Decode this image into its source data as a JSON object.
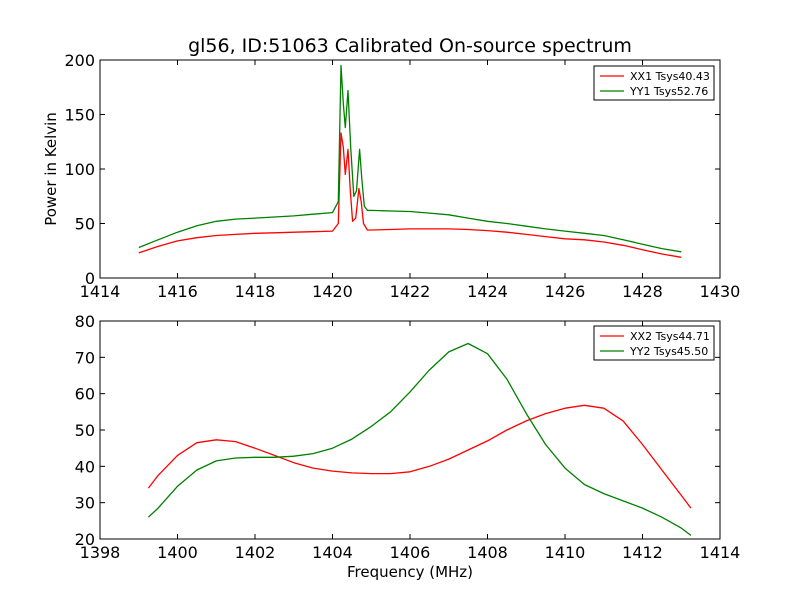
{
  "chart_data": [
    {
      "type": "line",
      "title": "gl56, ID:51063 Calibrated On-source spectrum",
      "xlabel": "",
      "ylabel": "Power in Kelvin",
      "xlim": [
        1414,
        1430
      ],
      "ylim": [
        0,
        200
      ],
      "xticks": [
        "1414",
        "1416",
        "1418",
        "1420",
        "1422",
        "1424",
        "1426",
        "1428",
        "1430"
      ],
      "yticks": [
        "0",
        "50",
        "100",
        "150",
        "200"
      ],
      "legend_position": "top-right",
      "grid": false,
      "series": [
        {
          "name": "XX1 Tsys40.43",
          "color": "#ff0000",
          "x": [
            1415.0,
            1415.5,
            1416.0,
            1416.5,
            1417.0,
            1417.5,
            1418.0,
            1418.5,
            1419.0,
            1419.5,
            1420.0,
            1420.15,
            1420.22,
            1420.28,
            1420.33,
            1420.4,
            1420.46,
            1420.52,
            1420.6,
            1420.68,
            1420.74,
            1420.8,
            1420.9,
            1421.0,
            1421.5,
            1422.0,
            1422.5,
            1423.0,
            1423.5,
            1424.0,
            1424.5,
            1425.0,
            1425.5,
            1426.0,
            1426.5,
            1427.0,
            1427.5,
            1428.0,
            1428.5,
            1429.0
          ],
          "y": [
            23,
            29,
            34,
            37,
            39,
            40,
            41,
            41.5,
            42,
            42.5,
            43,
            50,
            133,
            120,
            95,
            118,
            80,
            52,
            55,
            82,
            70,
            50,
            44,
            44,
            44.5,
            45,
            45,
            45,
            44.5,
            43.5,
            42,
            40,
            38,
            36,
            35,
            33,
            30,
            26,
            22,
            19
          ]
        },
        {
          "name": "YY1 Tsys52.76",
          "color": "#008000",
          "x": [
            1415.0,
            1415.5,
            1416.0,
            1416.5,
            1417.0,
            1417.5,
            1418.0,
            1418.5,
            1419.0,
            1419.5,
            1420.0,
            1420.15,
            1420.22,
            1420.28,
            1420.33,
            1420.4,
            1420.47,
            1420.55,
            1420.62,
            1420.7,
            1420.76,
            1420.82,
            1420.9,
            1421.0,
            1421.5,
            1422.0,
            1422.5,
            1423.0,
            1423.5,
            1424.0,
            1424.5,
            1425.0,
            1425.5,
            1426.0,
            1426.5,
            1427.0,
            1427.5,
            1428.0,
            1428.5,
            1429.0
          ],
          "y": [
            28,
            35,
            42,
            48,
            52,
            54,
            55,
            56,
            57,
            58.5,
            60,
            70,
            195,
            160,
            138,
            172,
            120,
            75,
            80,
            118,
            90,
            66,
            62,
            62,
            61.5,
            61,
            59.5,
            58,
            55,
            52,
            50,
            47.5,
            45,
            43,
            41,
            39,
            35,
            31,
            27,
            24
          ]
        }
      ]
    },
    {
      "type": "line",
      "title": "",
      "xlabel": "Frequency (MHz)",
      "ylabel": "",
      "xlim": [
        1398,
        1414
      ],
      "ylim": [
        20,
        80
      ],
      "xticks": [
        "1398",
        "1400",
        "1402",
        "1404",
        "1406",
        "1408",
        "1410",
        "1412",
        "1414"
      ],
      "yticks": [
        "20",
        "30",
        "40",
        "50",
        "60",
        "70",
        "80"
      ],
      "legend_position": "top-right",
      "grid": false,
      "series": [
        {
          "name": "XX2 Tsys44.71",
          "color": "#ff0000",
          "x": [
            1399.25,
            1399.5,
            1400.0,
            1400.5,
            1401.0,
            1401.5,
            1402.0,
            1402.5,
            1403.0,
            1403.5,
            1404.0,
            1404.5,
            1405.0,
            1405.5,
            1406.0,
            1406.5,
            1407.0,
            1407.5,
            1408.0,
            1408.5,
            1409.0,
            1409.5,
            1410.0,
            1410.5,
            1411.0,
            1411.5,
            1412.0,
            1412.5,
            1413.0,
            1413.25
          ],
          "y": [
            34,
            37.5,
            43,
            46.5,
            47.3,
            46.8,
            45,
            43,
            41,
            39.5,
            38.7,
            38.2,
            38,
            38,
            38.5,
            40,
            42,
            44.5,
            47,
            50,
            52.5,
            54.5,
            56,
            56.8,
            56,
            52.5,
            46,
            39,
            32,
            28.5
          ]
        },
        {
          "name": "YY2 Tsys45.50",
          "color": "#008000",
          "x": [
            1399.25,
            1399.5,
            1400.0,
            1400.5,
            1401.0,
            1401.5,
            1402.0,
            1402.5,
            1403.0,
            1403.5,
            1404.0,
            1404.5,
            1405.0,
            1405.5,
            1406.0,
            1406.5,
            1407.0,
            1407.5,
            1408.0,
            1408.5,
            1409.0,
            1409.5,
            1410.0,
            1410.5,
            1411.0,
            1411.5,
            1412.0,
            1412.5,
            1413.0,
            1413.25
          ],
          "y": [
            26,
            28.5,
            34.5,
            39,
            41.5,
            42.3,
            42.5,
            42.5,
            42.8,
            43.5,
            45,
            47.5,
            51,
            55,
            60.5,
            66.5,
            71.5,
            73.8,
            71,
            64,
            54.5,
            46,
            39.5,
            35,
            32.5,
            30.5,
            28.5,
            26,
            23,
            21
          ]
        }
      ]
    }
  ]
}
